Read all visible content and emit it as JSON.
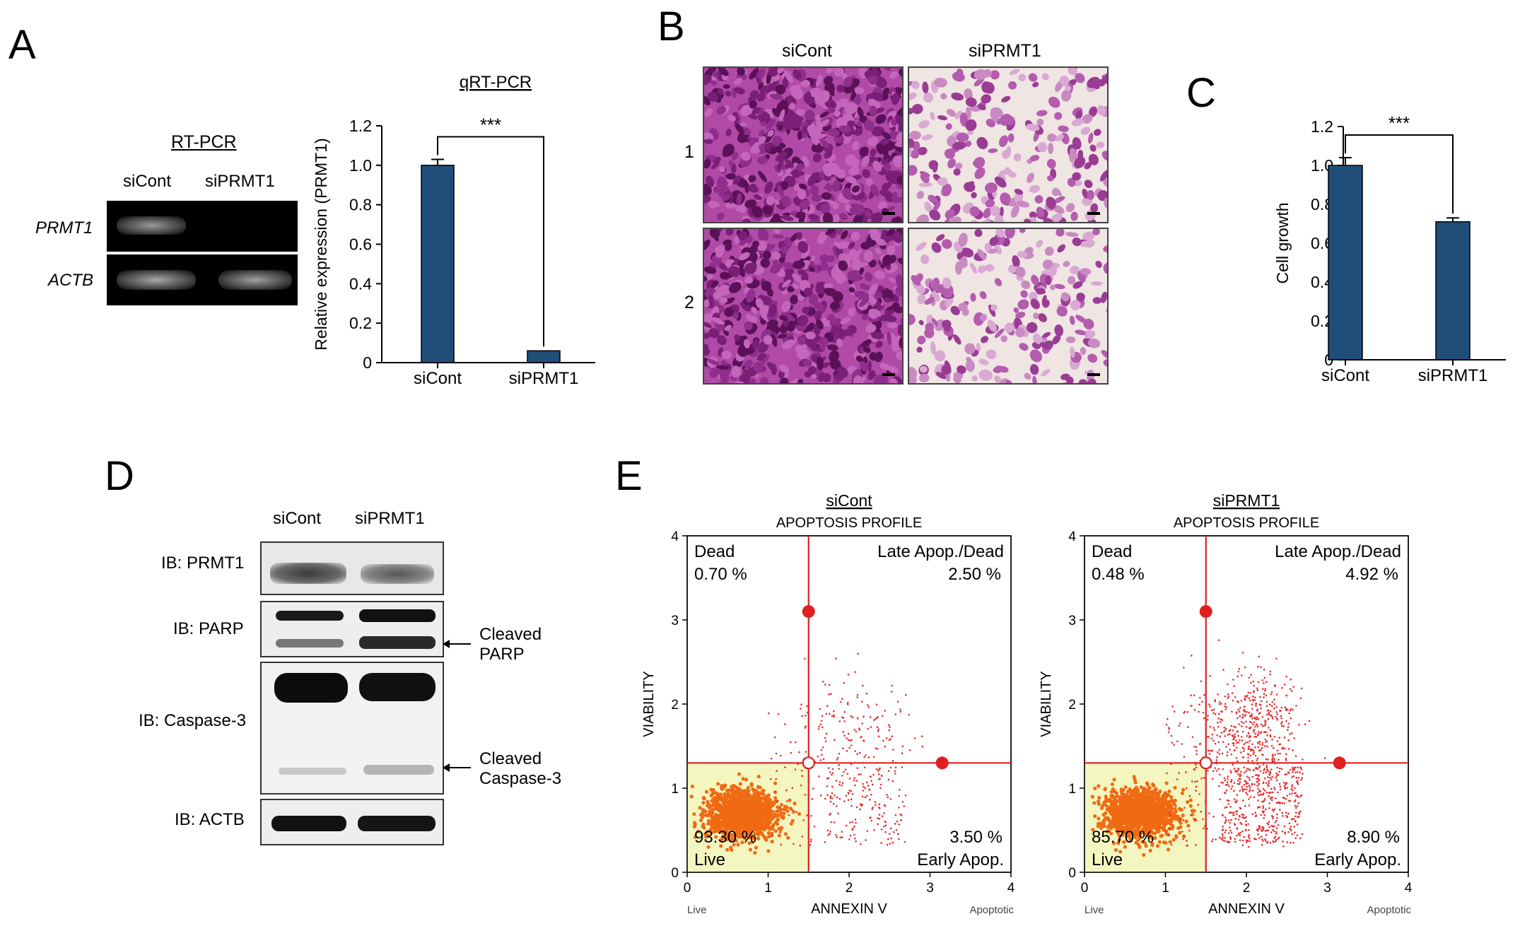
{
  "panels": {
    "A": "A",
    "B": "B",
    "C": "C",
    "D": "D",
    "E": "E"
  },
  "rtpcr": {
    "title": "RT-PCR",
    "lanes": [
      "siCont",
      "siPRMT1"
    ],
    "rows": [
      "PRMT1",
      "ACTB"
    ]
  },
  "chart_data": [
    {
      "type": "bar",
      "title": "qRT-PCR",
      "categories": [
        "siCont",
        "siPRMT1"
      ],
      "values": [
        1.0,
        0.06
      ],
      "errors": [
        0.03,
        0.0
      ],
      "ylabel": "Relative expression (PRMT1)",
      "ylim": [
        0,
        1.2
      ],
      "yticks": [
        "0",
        "0.2",
        "0.4",
        "0.6",
        "0.8",
        "1.0",
        "1.2"
      ],
      "significance": "***",
      "color": "#1f4e79"
    },
    {
      "type": "bar",
      "title": "",
      "categories": [
        "siCont",
        "siPRMT1"
      ],
      "values": [
        1.0,
        0.71
      ],
      "errors": [
        0.04,
        0.02
      ],
      "ylabel": "Cell growth",
      "ylim": [
        0,
        1.2
      ],
      "yticks": [
        "0",
        "0.2",
        "0.4",
        "0.6",
        "0.8",
        "1.0",
        "1.2"
      ],
      "significance": "***",
      "color": "#1f4e79"
    },
    {
      "type": "scatter",
      "title": "siCont",
      "subtitle": "APOPTOSIS PROFILE",
      "xlabel": "ANNEXIN V",
      "ylabel": "VIABILITY",
      "xlim": [
        0,
        4
      ],
      "ylim": [
        0,
        4
      ],
      "xticks": [
        "0",
        "1",
        "2",
        "3",
        "4"
      ],
      "yticks": [
        "0",
        "1",
        "2",
        "3",
        "4"
      ],
      "x_end_labels": [
        "Live",
        "Apoptotic"
      ],
      "gates": {
        "x": 1.5,
        "y": 1.3
      },
      "quadrants": {
        "dead": {
          "label": "Dead",
          "value": "0.70 %"
        },
        "late": {
          "label": "Late Apop./Dead",
          "value": "2.50 %"
        },
        "live": {
          "label": "Live",
          "value": "93.30 %"
        },
        "early": {
          "label": "Early Apop.",
          "value": "3.50 %"
        }
      }
    },
    {
      "type": "scatter",
      "title": "siPRMT1",
      "subtitle": "APOPTOSIS PROFILE",
      "xlabel": "ANNEXIN V",
      "ylabel": "VIABILITY",
      "xlim": [
        0,
        4
      ],
      "ylim": [
        0,
        4
      ],
      "xticks": [
        "0",
        "1",
        "2",
        "3",
        "4"
      ],
      "yticks": [
        "0",
        "1",
        "2",
        "3",
        "4"
      ],
      "x_end_labels": [
        "Live",
        "Apoptotic"
      ],
      "gates": {
        "x": 1.5,
        "y": 1.3
      },
      "quadrants": {
        "dead": {
          "label": "Dead",
          "value": "0.48 %"
        },
        "late": {
          "label": "Late Apop./Dead",
          "value": "4.92 %"
        },
        "live": {
          "label": "Live",
          "value": "85.70 %"
        },
        "early": {
          "label": "Early Apop.",
          "value": "8.90 %"
        }
      }
    }
  ],
  "micro": {
    "columns": [
      "siCont",
      "siPRMT1"
    ],
    "rows": [
      "1",
      "2"
    ]
  },
  "western": {
    "lanes": [
      "siCont",
      "siPRMT1"
    ],
    "rows": [
      "IB: PRMT1",
      "IB: PARP",
      "IB: Caspase-3",
      "IB: ACTB"
    ],
    "annot_parp": [
      "Cleaved",
      "PARP"
    ],
    "annot_casp": [
      "Cleaved",
      "Caspase-3"
    ]
  }
}
